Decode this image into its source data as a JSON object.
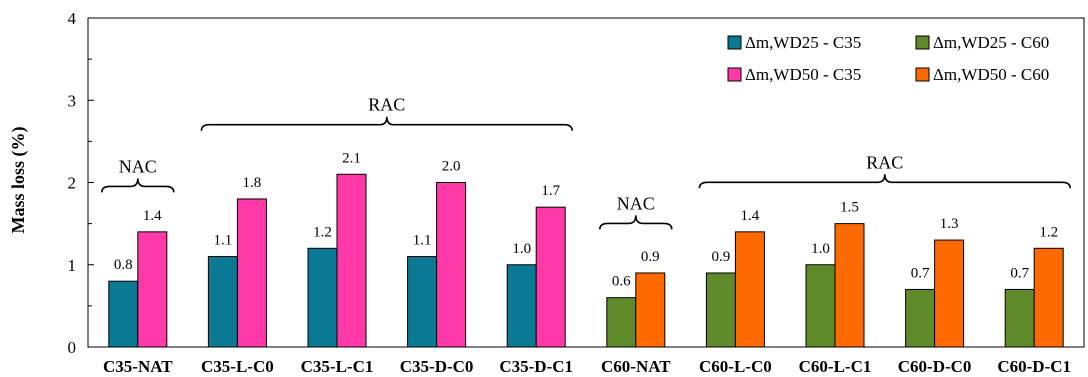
{
  "chart_data": {
    "type": "bar",
    "ylabel": "Mass loss (%)",
    "ylim": [
      0,
      4
    ],
    "yticks": [
      "0",
      "1",
      "2",
      "3",
      "4"
    ],
    "grid": false,
    "legend_position": "top-right",
    "categories": [
      "C35-NAT",
      "C35-L-C0",
      "C35-L-C1",
      "C35-D-C0",
      "C35-D-C1",
      "C60-NAT",
      "C60-L-C0",
      "C60-L-C1",
      "C60-D-C0",
      "C60-D-C1"
    ],
    "series": [
      {
        "name": "Δm,WD25 - C35",
        "color": "#0a7a94",
        "values": [
          0.8,
          1.1,
          1.2,
          1.1,
          1.0,
          null,
          null,
          null,
          null,
          null
        ],
        "labels": [
          "0.8",
          "1.1",
          "1.2",
          "1.1",
          "1.0",
          "",
          "",
          "",
          "",
          ""
        ]
      },
      {
        "name": "Δm,WD50 - C35",
        "color": "#ff3aa8",
        "values": [
          1.4,
          1.8,
          2.1,
          2.0,
          1.7,
          null,
          null,
          null,
          null,
          null
        ],
        "labels": [
          "1.4",
          "1.8",
          "2.1",
          "2.0",
          "1.7",
          "",
          "",
          "",
          "",
          ""
        ]
      },
      {
        "name": "Δm,WD25 - C60",
        "color": "#5e8a2a",
        "values": [
          null,
          null,
          null,
          null,
          null,
          0.6,
          0.9,
          1.0,
          0.7,
          0.7
        ],
        "labels": [
          "",
          "",
          "",
          "",
          "",
          "0.6",
          "0.9",
          "1.0",
          "0.7",
          "0.7"
        ]
      },
      {
        "name": "Δm,WD50 - C60",
        "color": "#ff6a00",
        "values": [
          null,
          null,
          null,
          null,
          null,
          0.9,
          1.4,
          1.5,
          1.3,
          1.2
        ],
        "labels": [
          "",
          "",
          "",
          "",
          "",
          "0.9",
          "1.4",
          "1.5",
          "1.3",
          "1.2"
        ]
      }
    ],
    "legend_order": [
      0,
      2,
      1,
      3
    ],
    "annotations": [
      {
        "text": "NAC",
        "from": 0,
        "to": 0,
        "y": 2.05
      },
      {
        "text": "RAC",
        "from": 1,
        "to": 4,
        "y": 2.8
      },
      {
        "text": "NAC",
        "from": 5,
        "to": 5,
        "y": 1.6
      },
      {
        "text": "RAC",
        "from": 6,
        "to": 9,
        "y": 2.1
      }
    ]
  }
}
